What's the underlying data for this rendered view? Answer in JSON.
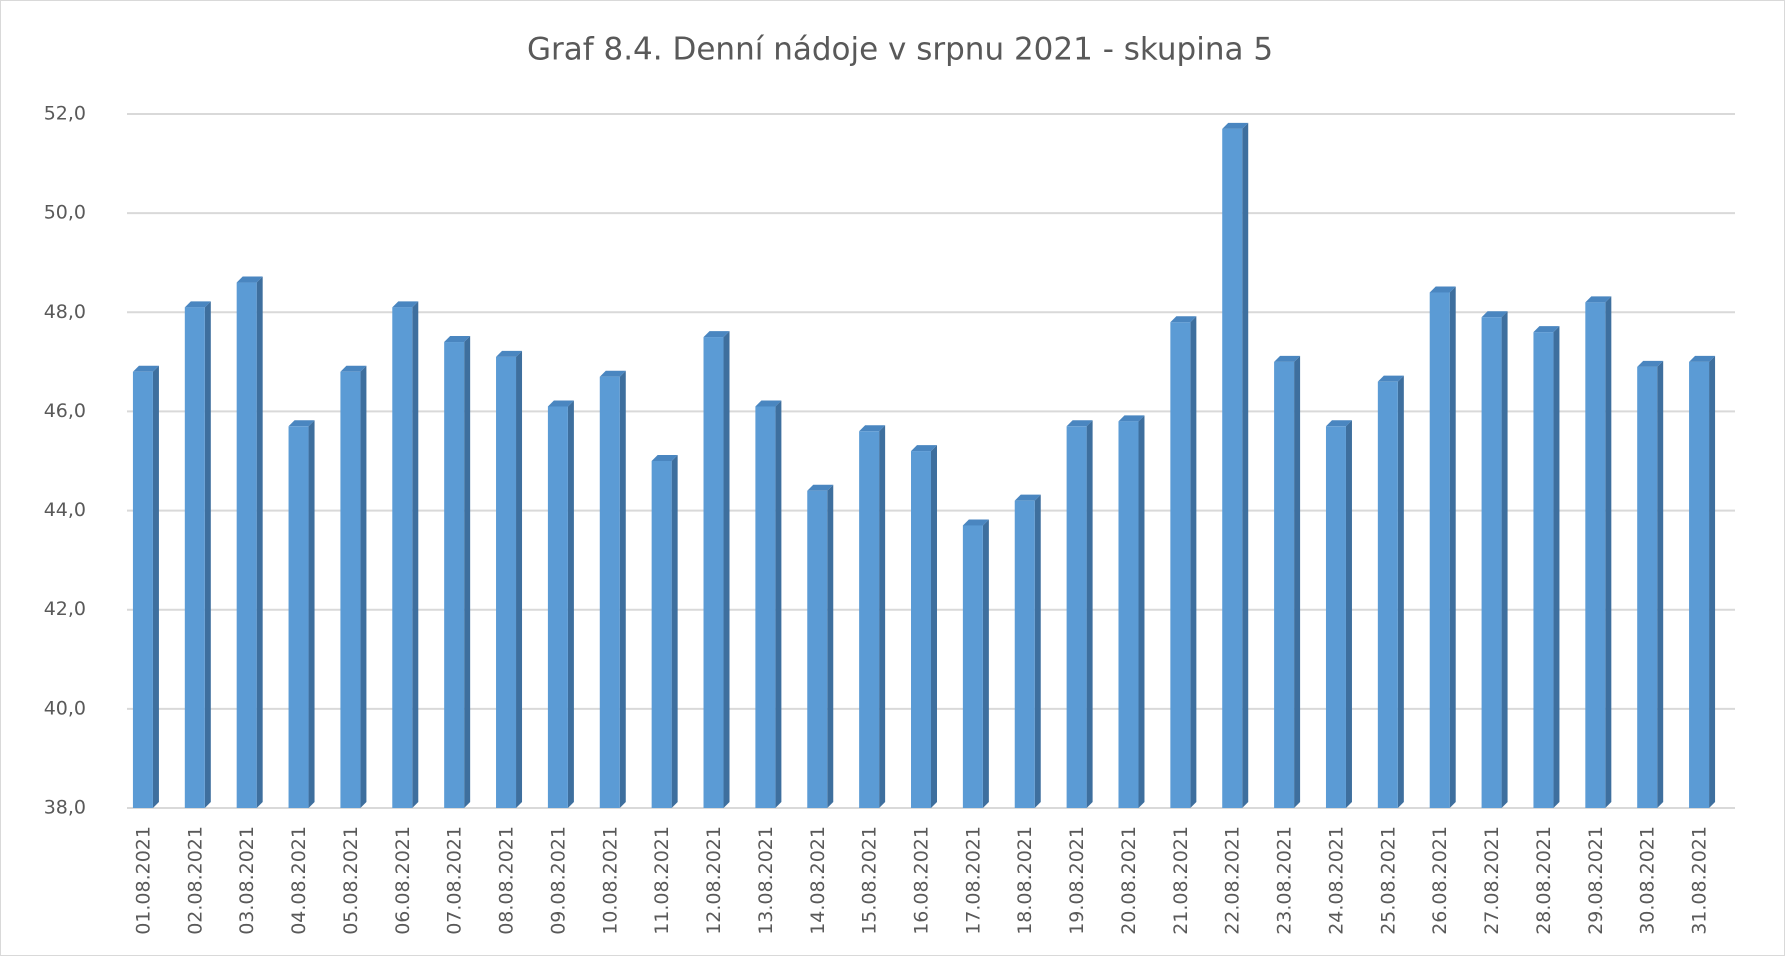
{
  "chart_data": {
    "type": "bar",
    "title": "Graf 8.4. Denní nádoje v srpnu 2021 - skupina 5",
    "categories": [
      "01.08.2021",
      "02.08.2021",
      "03.08.2021",
      "04.08.2021",
      "05.08.2021",
      "06.08.2021",
      "07.08.2021",
      "08.08.2021",
      "09.08.2021",
      "10.08.2021",
      "11.08.2021",
      "12.08.2021",
      "13.08.2021",
      "14.08.2021",
      "15.08.2021",
      "16.08.2021",
      "17.08.2021",
      "18.08.2021",
      "19.08.2021",
      "20.08.2021",
      "21.08.2021",
      "22.08.2021",
      "23.08.2021",
      "24.08.2021",
      "25.08.2021",
      "26.08.2021",
      "27.08.2021",
      "28.08.2021",
      "29.08.2021",
      "30.08.2021",
      "31.08.2021"
    ],
    "values": [
      46.8,
      48.1,
      48.6,
      45.7,
      46.8,
      48.1,
      47.4,
      47.1,
      46.1,
      46.7,
      45.0,
      47.5,
      46.1,
      44.4,
      45.6,
      45.2,
      43.7,
      44.2,
      45.7,
      45.8,
      47.8,
      51.7,
      47.0,
      45.7,
      46.6,
      48.4,
      47.9,
      47.6,
      48.2,
      46.9,
      47.0
    ],
    "color": "#5b9bd5",
    "ylim": [
      38,
      52
    ],
    "yticks": [
      {
        "value": 38,
        "label": "38,0"
      },
      {
        "value": 40,
        "label": "40,0"
      },
      {
        "value": 42,
        "label": "42,0"
      },
      {
        "value": 44,
        "label": "44,0"
      },
      {
        "value": 46,
        "label": "46,0"
      },
      {
        "value": 48,
        "label": "48,0"
      },
      {
        "value": 50,
        "label": "50,0"
      },
      {
        "value": 52,
        "label": "52,0"
      }
    ],
    "grid": true
  }
}
